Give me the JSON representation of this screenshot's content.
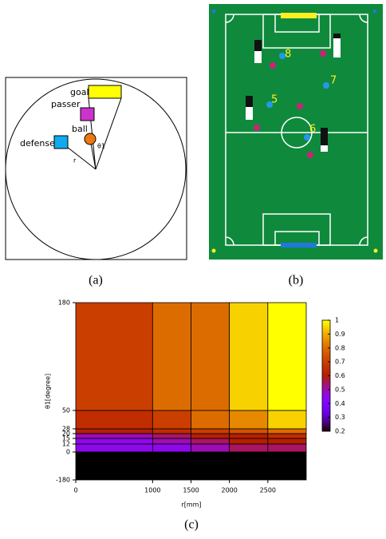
{
  "panel_a": {
    "caption": "(a)",
    "goal": "goal",
    "passer": "passer",
    "ball": "ball",
    "defense": "defense",
    "r": "r",
    "theta": "θ1"
  },
  "panel_b": {
    "caption": "(b)",
    "robot_numbers": [
      "8",
      "7",
      "5",
      "6"
    ]
  },
  "chart_data": {
    "type": "heatmap",
    "caption": "(c)",
    "xlabel": "r[mm]",
    "ylabel": "θ1[degree]",
    "bins": [
      0,
      1000,
      1500,
      2000,
      2500,
      3000
    ],
    "xlim": [
      0,
      3000
    ],
    "xticks": [
      0,
      1000,
      1500,
      2000,
      2500
    ],
    "y_bins": [
      -180,
      0,
      12,
      15,
      20,
      28,
      50,
      180
    ],
    "ylim": [
      -180,
      180
    ],
    "yticks": [
      -180,
      0,
      12,
      15,
      20,
      28,
      50,
      180
    ],
    "values": [
      [
        0.2,
        0.2,
        0.2,
        0.2,
        0.2
      ],
      [
        0.45,
        0.45,
        0.5,
        0.55,
        0.55
      ],
      [
        0.45,
        0.5,
        0.55,
        0.6,
        0.6
      ],
      [
        0.5,
        0.55,
        0.6,
        0.6,
        0.65
      ],
      [
        0.6,
        0.65,
        0.7,
        0.75,
        0.8
      ],
      [
        0.65,
        0.7,
        0.8,
        0.85,
        0.95
      ],
      [
        0.7,
        0.8,
        0.8,
        0.95,
        1
      ]
    ],
    "colormap": "gnuplot",
    "clim": [
      0.2,
      1
    ],
    "cticks": [
      0.2,
      0.3,
      0.4,
      0.5,
      0.6,
      0.7,
      0.8,
      0.9,
      1
    ]
  }
}
